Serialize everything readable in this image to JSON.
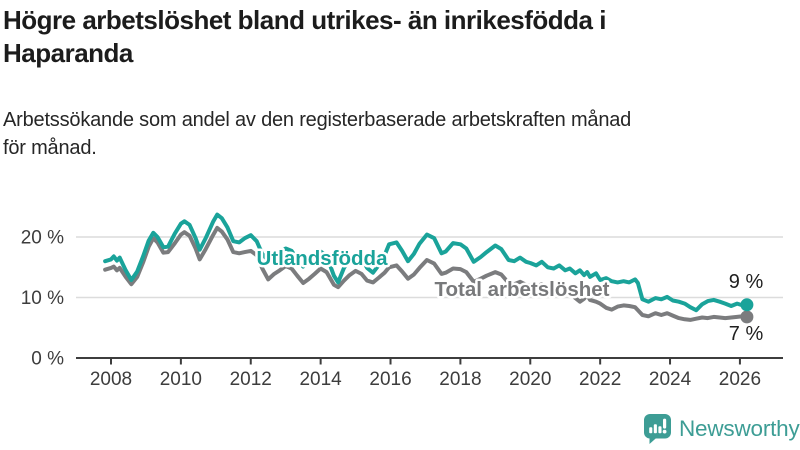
{
  "chart_data": {
    "type": "line",
    "title": "Högre arbetslöshet bland utrikes- än inrikesfödda i\nHaparanda",
    "subtitle": "Arbetssökande som andel av den registerbaserade arbetskraften månad\nför månad.",
    "unit": "%",
    "grid": "horizontal",
    "legend_position": "inline-labels",
    "x_axis": {
      "range": [
        2007.8,
        2027.0
      ],
      "ticks": [
        {
          "v": 2008,
          "label": "2008"
        },
        {
          "v": 2010,
          "label": "2010"
        },
        {
          "v": 2012,
          "label": "2012"
        },
        {
          "v": 2014,
          "label": "2014"
        },
        {
          "v": 2016,
          "label": "2016"
        },
        {
          "v": 2018,
          "label": "2018"
        },
        {
          "v": 2020,
          "label": "2020"
        },
        {
          "v": 2022,
          "label": "2022"
        },
        {
          "v": 2024,
          "label": "2024"
        },
        {
          "v": 2026,
          "label": "2026"
        }
      ]
    },
    "y_axis": {
      "range": [
        0,
        26
      ],
      "ticks": [
        {
          "v": 0,
          "label": "0 %"
        },
        {
          "v": 10,
          "label": "10 %"
        },
        {
          "v": 20,
          "label": "20 %"
        }
      ]
    },
    "series": [
      {
        "name": "Total arbetslöshet",
        "color": "#7b7c7e",
        "end_label": "7 %",
        "end_value": 6.8,
        "points": [
          [
            2007.83,
            14.6
          ],
          [
            2008.0,
            14.9
          ],
          [
            2008.08,
            15.1
          ],
          [
            2008.17,
            14.5
          ],
          [
            2008.25,
            14.9
          ],
          [
            2008.42,
            13.4
          ],
          [
            2008.58,
            12.2
          ],
          [
            2008.75,
            13.4
          ],
          [
            2008.92,
            15.8
          ],
          [
            2009.08,
            18.4
          ],
          [
            2009.21,
            19.8
          ],
          [
            2009.33,
            19.1
          ],
          [
            2009.5,
            17.4
          ],
          [
            2009.63,
            17.5
          ],
          [
            2009.83,
            19.0
          ],
          [
            2010.0,
            20.4
          ],
          [
            2010.1,
            20.8
          ],
          [
            2010.25,
            20.2
          ],
          [
            2010.42,
            18.1
          ],
          [
            2010.54,
            16.3
          ],
          [
            2010.71,
            18.0
          ],
          [
            2010.92,
            20.3
          ],
          [
            2011.04,
            21.5
          ],
          [
            2011.17,
            20.9
          ],
          [
            2011.33,
            19.6
          ],
          [
            2011.5,
            17.5
          ],
          [
            2011.67,
            17.3
          ],
          [
            2011.83,
            17.5
          ],
          [
            2012.0,
            17.7
          ],
          [
            2012.17,
            17.0
          ],
          [
            2012.33,
            14.8
          ],
          [
            2012.5,
            13.0
          ],
          [
            2012.67,
            13.9
          ],
          [
            2012.83,
            14.5
          ],
          [
            2013.0,
            15.2
          ],
          [
            2013.17,
            14.8
          ],
          [
            2013.33,
            13.6
          ],
          [
            2013.5,
            12.4
          ],
          [
            2013.67,
            13.1
          ],
          [
            2013.83,
            13.9
          ],
          [
            2014.0,
            14.8
          ],
          [
            2014.17,
            14.2
          ],
          [
            2014.38,
            12.1
          ],
          [
            2014.5,
            11.7
          ],
          [
            2014.67,
            12.8
          ],
          [
            2014.83,
            13.7
          ],
          [
            2015.0,
            14.4
          ],
          [
            2015.17,
            13.9
          ],
          [
            2015.33,
            12.8
          ],
          [
            2015.5,
            12.5
          ],
          [
            2015.67,
            13.3
          ],
          [
            2015.83,
            14.1
          ],
          [
            2015.96,
            15.0
          ],
          [
            2016.17,
            15.3
          ],
          [
            2016.33,
            14.3
          ],
          [
            2016.5,
            13.1
          ],
          [
            2016.67,
            13.8
          ],
          [
            2016.83,
            14.9
          ],
          [
            2017.04,
            16.2
          ],
          [
            2017.25,
            15.6
          ],
          [
            2017.46,
            13.9
          ],
          [
            2017.58,
            14.1
          ],
          [
            2017.79,
            14.8
          ],
          [
            2018.0,
            14.7
          ],
          [
            2018.17,
            14.2
          ],
          [
            2018.38,
            12.6
          ],
          [
            2018.58,
            13.1
          ],
          [
            2018.75,
            13.6
          ],
          [
            2019.0,
            14.2
          ],
          [
            2019.17,
            13.8
          ],
          [
            2019.38,
            12.4
          ],
          [
            2019.54,
            12.2
          ],
          [
            2019.71,
            12.6
          ],
          [
            2019.88,
            12.1
          ],
          [
            2020.0,
            12.0
          ],
          [
            2020.17,
            11.8
          ],
          [
            2020.33,
            12.2
          ],
          [
            2020.5,
            11.6
          ],
          [
            2020.67,
            11.4
          ],
          [
            2020.83,
            11.7
          ],
          [
            2021.0,
            11.0
          ],
          [
            2021.13,
            10.7
          ],
          [
            2021.29,
            9.9
          ],
          [
            2021.42,
            9.3
          ],
          [
            2021.54,
            9.8
          ],
          [
            2021.63,
            10.4
          ],
          [
            2021.71,
            9.6
          ],
          [
            2021.88,
            9.3
          ],
          [
            2022.0,
            9.0
          ],
          [
            2022.17,
            8.3
          ],
          [
            2022.33,
            8.0
          ],
          [
            2022.5,
            8.5
          ],
          [
            2022.67,
            8.7
          ],
          [
            2022.83,
            8.6
          ],
          [
            2023.0,
            8.4
          ],
          [
            2023.21,
            7.1
          ],
          [
            2023.38,
            6.9
          ],
          [
            2023.58,
            7.4
          ],
          [
            2023.75,
            7.1
          ],
          [
            2023.92,
            7.4
          ],
          [
            2024.08,
            7.0
          ],
          [
            2024.25,
            6.6
          ],
          [
            2024.42,
            6.4
          ],
          [
            2024.58,
            6.3
          ],
          [
            2024.75,
            6.5
          ],
          [
            2024.92,
            6.7
          ],
          [
            2025.08,
            6.6
          ],
          [
            2025.25,
            6.8
          ],
          [
            2025.42,
            6.7
          ],
          [
            2025.58,
            6.6
          ],
          [
            2025.75,
            6.7
          ],
          [
            2025.92,
            6.8
          ],
          [
            2026.08,
            6.9
          ],
          [
            2026.2,
            6.8
          ]
        ]
      },
      {
        "name": "Utlandsfödda",
        "color": "#1aa39a",
        "end_label": "9 %",
        "end_value": 8.8,
        "points": [
          [
            2007.83,
            16.0
          ],
          [
            2008.0,
            16.3
          ],
          [
            2008.08,
            16.8
          ],
          [
            2008.17,
            16.1
          ],
          [
            2008.25,
            16.6
          ],
          [
            2008.42,
            14.5
          ],
          [
            2008.58,
            12.9
          ],
          [
            2008.75,
            14.3
          ],
          [
            2008.92,
            16.8
          ],
          [
            2009.08,
            19.4
          ],
          [
            2009.21,
            20.7
          ],
          [
            2009.33,
            20.0
          ],
          [
            2009.5,
            18.3
          ],
          [
            2009.63,
            18.4
          ],
          [
            2009.83,
            20.6
          ],
          [
            2010.0,
            22.2
          ],
          [
            2010.1,
            22.6
          ],
          [
            2010.25,
            22.0
          ],
          [
            2010.42,
            19.8
          ],
          [
            2010.54,
            17.9
          ],
          [
            2010.71,
            19.8
          ],
          [
            2010.92,
            22.5
          ],
          [
            2011.04,
            23.7
          ],
          [
            2011.17,
            23.1
          ],
          [
            2011.33,
            21.6
          ],
          [
            2011.5,
            19.3
          ],
          [
            2011.67,
            19.1
          ],
          [
            2011.83,
            19.8
          ],
          [
            2012.0,
            20.3
          ],
          [
            2012.17,
            19.3
          ],
          [
            2012.33,
            17.2
          ],
          [
            2012.5,
            16.1
          ],
          [
            2012.67,
            16.9
          ],
          [
            2012.83,
            17.6
          ],
          [
            2013.0,
            18.1
          ],
          [
            2013.17,
            17.7
          ],
          [
            2013.33,
            16.4
          ],
          [
            2013.5,
            15.1
          ],
          [
            2013.67,
            15.9
          ],
          [
            2013.83,
            16.8
          ],
          [
            2014.0,
            17.6
          ],
          [
            2014.17,
            16.9
          ],
          [
            2014.38,
            13.6
          ],
          [
            2014.5,
            12.5
          ],
          [
            2014.67,
            14.9
          ],
          [
            2014.83,
            16.3
          ],
          [
            2015.0,
            17.1
          ],
          [
            2015.17,
            16.5
          ],
          [
            2015.33,
            14.9
          ],
          [
            2015.5,
            14.1
          ],
          [
            2015.67,
            15.4
          ],
          [
            2015.83,
            17.0
          ],
          [
            2015.96,
            18.8
          ],
          [
            2016.17,
            19.1
          ],
          [
            2016.33,
            17.7
          ],
          [
            2016.5,
            16.0
          ],
          [
            2016.67,
            17.2
          ],
          [
            2016.83,
            18.9
          ],
          [
            2017.04,
            20.4
          ],
          [
            2017.25,
            19.8
          ],
          [
            2017.46,
            17.3
          ],
          [
            2017.58,
            17.6
          ],
          [
            2017.79,
            19.0
          ],
          [
            2018.0,
            18.8
          ],
          [
            2018.17,
            18.1
          ],
          [
            2018.38,
            15.9
          ],
          [
            2018.58,
            16.7
          ],
          [
            2018.75,
            17.5
          ],
          [
            2019.0,
            18.6
          ],
          [
            2019.17,
            18.0
          ],
          [
            2019.38,
            16.2
          ],
          [
            2019.54,
            16.0
          ],
          [
            2019.71,
            16.6
          ],
          [
            2019.88,
            15.9
          ],
          [
            2020.0,
            15.7
          ],
          [
            2020.17,
            15.3
          ],
          [
            2020.33,
            15.9
          ],
          [
            2020.5,
            15.0
          ],
          [
            2020.67,
            14.8
          ],
          [
            2020.83,
            15.3
          ],
          [
            2021.0,
            14.5
          ],
          [
            2021.13,
            14.8
          ],
          [
            2021.29,
            14.0
          ],
          [
            2021.42,
            14.5
          ],
          [
            2021.54,
            13.7
          ],
          [
            2021.63,
            14.2
          ],
          [
            2021.71,
            13.4
          ],
          [
            2021.88,
            14.0
          ],
          [
            2022.0,
            12.9
          ],
          [
            2022.17,
            13.2
          ],
          [
            2022.33,
            12.7
          ],
          [
            2022.5,
            12.5
          ],
          [
            2022.67,
            12.7
          ],
          [
            2022.83,
            12.5
          ],
          [
            2023.0,
            13.0
          ],
          [
            2023.08,
            12.4
          ],
          [
            2023.21,
            9.7
          ],
          [
            2023.38,
            9.3
          ],
          [
            2023.58,
            9.9
          ],
          [
            2023.75,
            9.7
          ],
          [
            2023.92,
            10.1
          ],
          [
            2024.08,
            9.5
          ],
          [
            2024.25,
            9.3
          ],
          [
            2024.42,
            9.0
          ],
          [
            2024.58,
            8.4
          ],
          [
            2024.75,
            7.9
          ],
          [
            2024.92,
            8.9
          ],
          [
            2025.08,
            9.4
          ],
          [
            2025.25,
            9.6
          ],
          [
            2025.42,
            9.3
          ],
          [
            2025.58,
            9.0
          ],
          [
            2025.75,
            8.6
          ],
          [
            2025.92,
            9.0
          ],
          [
            2026.08,
            8.7
          ],
          [
            2026.2,
            8.8
          ]
        ]
      }
    ],
    "colors": {
      "utlandsfodda": "#1aa39a",
      "total": "#7b7c7e",
      "gridline": "#dcdcdc",
      "axis": "#3d3d3d"
    }
  },
  "branding": {
    "logo_text": "Newsworthy",
    "logo_color": "#3d9d95"
  }
}
